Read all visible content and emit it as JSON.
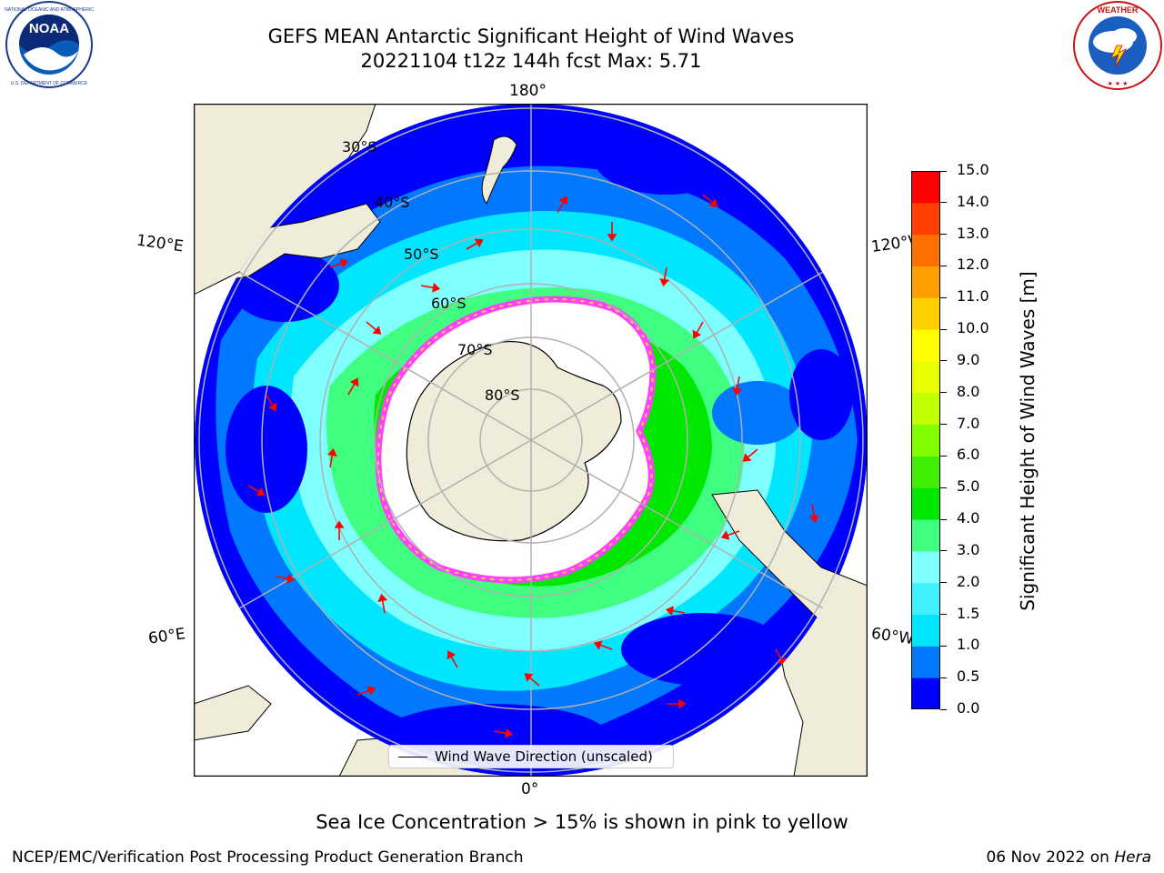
{
  "title": {
    "line1": "GEFS MEAN Antarctic Significant Height of Wind Waves",
    "line2": "20221104 t12z 144h fcst   Max: 5.71"
  },
  "logos": {
    "left": "NOAA",
    "right": "NATIONAL WEATHER SERVICE"
  },
  "map": {
    "projection": "south-polar-stereographic",
    "longitude_labels": {
      "top": "180°",
      "bottom": "0°",
      "upper_left": "120°E",
      "upper_right": "120°W",
      "lower_left": "60°E",
      "lower_right": "60°W"
    },
    "latitude_labels": [
      "30°S",
      "40°S",
      "50°S",
      "60°S",
      "70°S",
      "80°S"
    ],
    "grid": true,
    "land_color": "#efedda",
    "ice_color": "#ffffff",
    "ice_edge_colors": [
      "#ff40ff",
      "#ff80c0",
      "#ffd040"
    ],
    "arrow_color": "#ff0000"
  },
  "colorbar": {
    "label": "Significant Height of Wind Waves [m]",
    "ticks": [
      "0.0",
      "0.5",
      "1.0",
      "1.5",
      "2.0",
      "3.0",
      "4.0",
      "5.0",
      "6.0",
      "7.0",
      "8.0",
      "9.0",
      "10.0",
      "11.0",
      "12.0",
      "13.0",
      "14.0",
      "15.0"
    ],
    "colors": [
      "#0000ff",
      "#0078ff",
      "#00e6ff",
      "#40f0ff",
      "#80ffff",
      "#40ff80",
      "#00e800",
      "#40f000",
      "#80ff00",
      "#c0ff00",
      "#e8ff00",
      "#ffff00",
      "#ffd000",
      "#ffa000",
      "#ff7000",
      "#ff4000",
      "#ff0000"
    ]
  },
  "legend": {
    "label": "Wind Wave Direction (unscaled)"
  },
  "subtitle": "Sea Ice Concentration > 15% is shown in pink to yellow",
  "footer": {
    "left": "NCEP/EMC/Verification Post Processing Product Generation Branch",
    "right_date": "06 Nov 2022 on ",
    "right_host": "Hera"
  }
}
